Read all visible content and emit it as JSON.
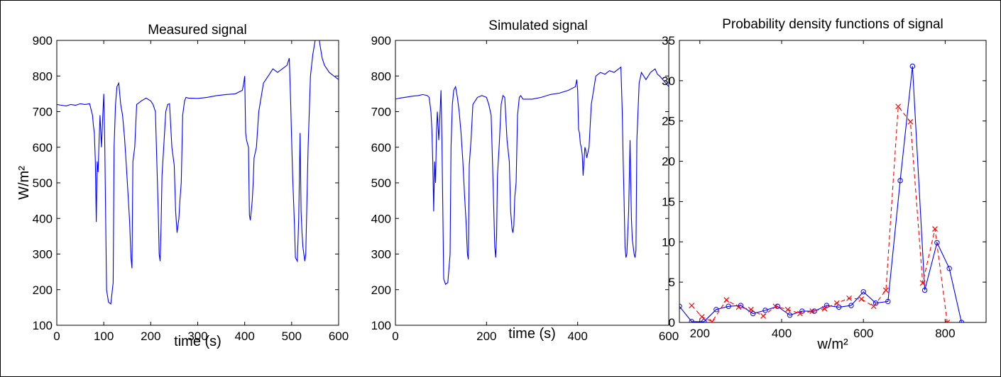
{
  "chart_data": [
    {
      "type": "line",
      "title": "Measured signal",
      "xlabel": "time (s)",
      "ylabel": "W/m²",
      "xlim": [
        0,
        600
      ],
      "ylim": [
        100,
        900
      ],
      "xticks": [
        "0",
        "100",
        "200",
        "300",
        "400",
        "500",
        "600"
      ],
      "yticks": [
        "100",
        "200",
        "300",
        "400",
        "500",
        "600",
        "700",
        "800",
        "900"
      ],
      "color": "#0000ff",
      "series": [
        {
          "x": [
            0,
            10,
            20,
            30,
            40,
            50,
            60,
            70,
            74,
            76,
            78,
            80,
            82,
            84,
            86,
            88,
            90,
            92,
            95,
            98,
            100,
            102,
            106,
            110,
            115,
            120,
            122,
            125,
            128,
            132,
            136,
            140,
            144,
            148,
            152,
            155,
            158,
            160,
            162,
            166,
            170,
            180,
            190,
            200,
            205,
            210,
            213,
            216,
            218,
            220,
            222,
            224,
            228,
            232,
            236,
            240,
            245,
            250,
            253,
            256,
            258,
            260,
            262,
            265,
            268,
            272,
            275,
            280,
            300,
            320,
            340,
            360,
            380,
            395,
            398,
            400,
            402,
            404,
            406,
            408,
            410,
            412,
            414,
            416,
            418,
            420,
            425,
            430,
            440,
            450,
            460,
            470,
            480,
            490,
            495,
            498,
            500,
            502,
            504,
            506,
            508,
            512,
            515,
            518,
            520,
            522,
            524,
            526,
            528,
            530,
            535,
            540,
            545,
            550,
            555,
            560,
            565,
            570,
            575,
            580,
            590,
            600
          ],
          "values": [
            720,
            718,
            716,
            720,
            718,
            722,
            720,
            722,
            700,
            690,
            660,
            640,
            560,
            390,
            560,
            530,
            620,
            690,
            600,
            690,
            750,
            620,
            200,
            165,
            160,
            220,
            600,
            720,
            770,
            780,
            720,
            690,
            630,
            550,
            460,
            390,
            290,
            260,
            560,
            600,
            720,
            730,
            738,
            730,
            720,
            700,
            560,
            420,
            300,
            280,
            380,
            520,
            610,
            700,
            720,
            722,
            600,
            550,
            420,
            360,
            380,
            400,
            450,
            500,
            690,
            730,
            740,
            738,
            737,
            740,
            745,
            748,
            750,
            760,
            780,
            800,
            640,
            620,
            610,
            600,
            410,
            395,
            420,
            450,
            500,
            570,
            600,
            700,
            780,
            800,
            820,
            810,
            820,
            830,
            850,
            720,
            620,
            520,
            450,
            380,
            290,
            280,
            400,
            640,
            420,
            360,
            320,
            300,
            280,
            300,
            600,
            800,
            860,
            900,
            940,
            890,
            850,
            830,
            820,
            810,
            800,
            790
          ]
        }
      ]
    },
    {
      "type": "line",
      "title": "Simulated signal",
      "xlabel": "time (s)",
      "ylabel": "",
      "xlim": [
        0,
        600
      ],
      "ylim": [
        100,
        900
      ],
      "xticks": [
        "0",
        "200",
        "400",
        "600"
      ],
      "yticks": [
        "100",
        "200",
        "300",
        "400",
        "500",
        "600",
        "700",
        "800",
        "900"
      ],
      "color": "#0000ff",
      "series": [
        {
          "x": [
            0,
            10,
            20,
            30,
            40,
            50,
            60,
            70,
            74,
            78,
            80,
            82,
            84,
            86,
            88,
            90,
            92,
            95,
            98,
            100,
            102,
            106,
            110,
            115,
            120,
            122,
            125,
            128,
            132,
            136,
            140,
            144,
            148,
            152,
            155,
            158,
            160,
            162,
            166,
            170,
            180,
            190,
            200,
            205,
            210,
            213,
            216,
            218,
            220,
            222,
            224,
            228,
            232,
            236,
            240,
            245,
            250,
            253,
            256,
            258,
            260,
            262,
            265,
            268,
            272,
            275,
            280,
            300,
            320,
            340,
            360,
            380,
            395,
            398,
            400,
            402,
            404,
            406,
            408,
            410,
            412,
            414,
            416,
            418,
            420,
            425,
            430,
            440,
            450,
            460,
            470,
            480,
            490,
            495,
            498,
            500,
            502,
            504,
            506,
            508,
            512,
            515,
            518,
            520,
            522,
            524,
            526,
            528,
            530,
            535,
            540,
            545,
            550,
            555,
            560,
            565,
            570,
            575,
            580,
            590,
            600
          ],
          "values": [
            735,
            738,
            740,
            742,
            744,
            745,
            748,
            745,
            740,
            700,
            650,
            560,
            420,
            560,
            500,
            640,
            700,
            620,
            700,
            760,
            620,
            230,
            215,
            220,
            300,
            600,
            720,
            760,
            770,
            740,
            700,
            640,
            560,
            460,
            390,
            300,
            285,
            550,
            620,
            720,
            740,
            745,
            740,
            720,
            690,
            560,
            420,
            320,
            290,
            350,
            520,
            610,
            720,
            745,
            740,
            620,
            560,
            420,
            370,
            360,
            380,
            460,
            500,
            690,
            740,
            745,
            735,
            735,
            740,
            748,
            752,
            760,
            770,
            790,
            760,
            650,
            640,
            610,
            600,
            580,
            520,
            560,
            600,
            590,
            570,
            600,
            720,
            800,
            810,
            805,
            815,
            810,
            820,
            825,
            700,
            560,
            450,
            320,
            290,
            300,
            420,
            620,
            400,
            340,
            320,
            300,
            290,
            310,
            620,
            780,
            810,
            800,
            790,
            800,
            810,
            815,
            820,
            805,
            800,
            785,
            770
          ]
        }
      ]
    },
    {
      "type": "line",
      "title": "Probability density functions of signal",
      "xlabel": "w/m²",
      "ylabel": "",
      "xlim": [
        150,
        900
      ],
      "ylim": [
        0,
        35
      ],
      "xticks": [
        "200",
        "400",
        "600",
        "800"
      ],
      "yticks": [
        "0",
        "5",
        "10",
        "15",
        "20",
        "25",
        "30",
        "35"
      ],
      "series": [
        {
          "color": "#0000ff",
          "style": "solid",
          "marker": "circle",
          "x": [
            150,
            180,
            210,
            240,
            270,
            300,
            330,
            360,
            390,
            420,
            450,
            480,
            510,
            540,
            570,
            600,
            630,
            660,
            690,
            720,
            750,
            780,
            810,
            840
          ],
          "values": [
            2.0,
            0.1,
            0.1,
            1.6,
            2.0,
            2.1,
            1.1,
            1.5,
            2.0,
            0.9,
            1.4,
            1.4,
            2.1,
            1.9,
            2.1,
            3.8,
            2.4,
            2.6,
            17.6,
            31.8,
            4.0,
            9.9,
            6.7,
            0.0
          ]
        },
        {
          "color": "#ff0000",
          "style": "dashed",
          "marker": "x",
          "x": [
            180,
            205,
            230,
            265,
            295,
            325,
            355,
            385,
            415,
            445,
            475,
            505,
            535,
            565,
            595,
            625,
            655,
            685,
            715,
            745,
            775,
            805
          ],
          "values": [
            2.1,
            0.7,
            0.1,
            2.8,
            1.9,
            1.6,
            0.8,
            2.0,
            1.6,
            1.1,
            1.4,
            1.7,
            2.4,
            3.0,
            2.9,
            2.0,
            4.0,
            26.8,
            24.9,
            4.9,
            11.6,
            0.0
          ]
        }
      ]
    }
  ]
}
